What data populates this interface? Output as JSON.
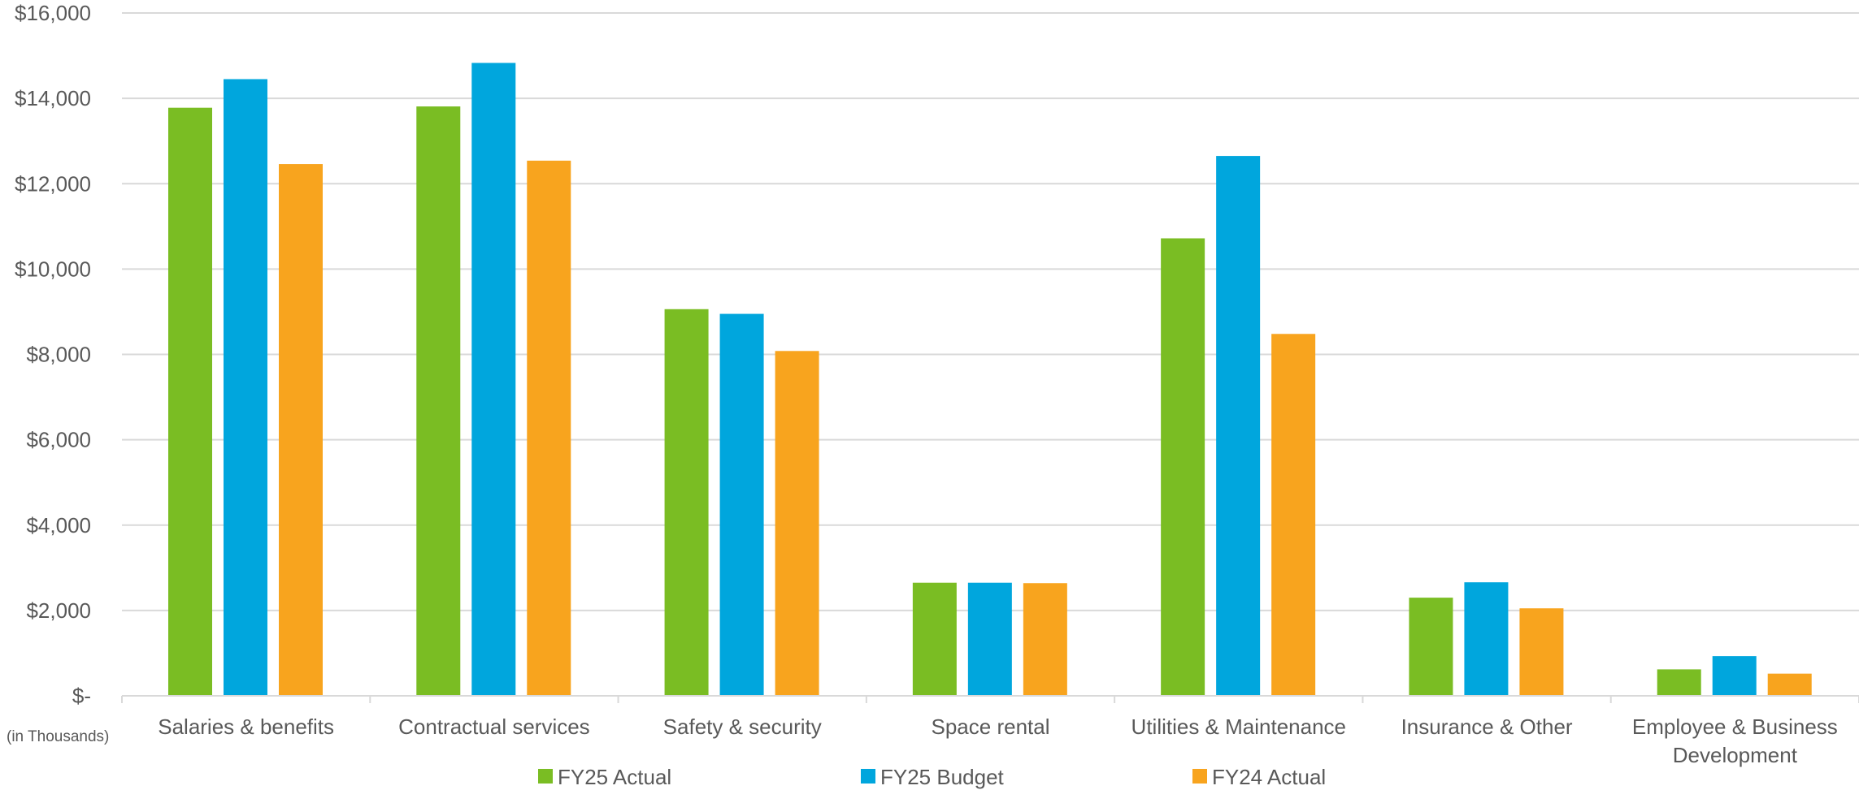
{
  "chart_data": {
    "type": "bar",
    "categories": [
      "Salaries & benefits",
      "Contractual services",
      "Safety & security",
      "Space rental",
      "Utilities & Maintenance",
      "Insurance & Other",
      "Employee & Business Development"
    ],
    "series": [
      {
        "name": "FY25 Actual",
        "color": "#7ABD23",
        "values": [
          13780,
          13810,
          9060,
          2650,
          10720,
          2300,
          620
        ]
      },
      {
        "name": "FY25 Budget",
        "color": "#00A6DD",
        "values": [
          14450,
          14830,
          8950,
          2650,
          12650,
          2660,
          930
        ]
      },
      {
        "name": "FY24 Actual",
        "color": "#F8A41E",
        "values": [
          12460,
          12540,
          8080,
          2640,
          8480,
          2050,
          520
        ]
      }
    ],
    "y_ticks": [
      "$-",
      "$2,000",
      "$4,000",
      "$6,000",
      "$8,000",
      "$10,000",
      "$12,000",
      "$14,000",
      "$16,000"
    ],
    "ylim": [
      0,
      16000
    ],
    "unit_note": "(in Thousands)",
    "grid": true,
    "legend": "bottom"
  }
}
